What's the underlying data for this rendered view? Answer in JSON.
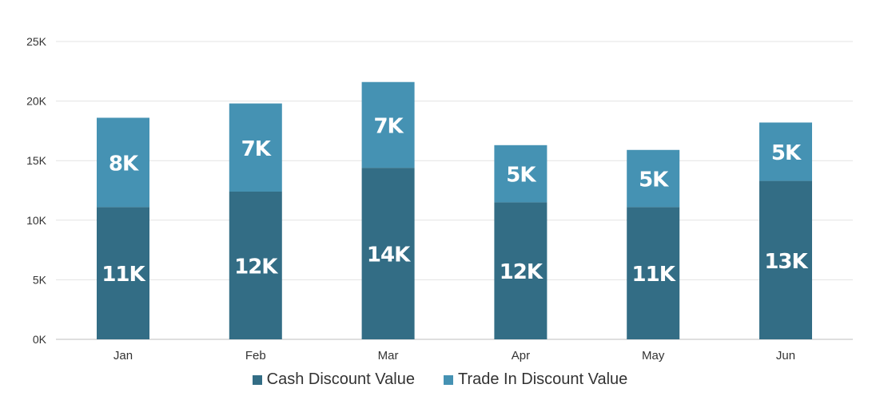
{
  "chart_data": {
    "type": "bar",
    "stacked": true,
    "categories": [
      "Jan",
      "Feb",
      "Mar",
      "Apr",
      "May",
      "Jun"
    ],
    "series": [
      {
        "name": "Cash Discount Value",
        "color": "#336d85",
        "values": [
          11100,
          12400,
          14400,
          11500,
          11100,
          13300
        ],
        "labels": [
          "11K",
          "12K",
          "14K",
          "12K",
          "11K",
          "13K"
        ]
      },
      {
        "name": "Trade In Discount Value",
        "color": "#4592b3",
        "values": [
          7500,
          7400,
          7200,
          4800,
          4800,
          4900
        ],
        "labels": [
          "8K",
          "7K",
          "7K",
          "5K",
          "5K",
          "5K"
        ]
      }
    ],
    "yticks": [
      "0K",
      "5K",
      "10K",
      "15K",
      "20K",
      "25K"
    ],
    "ylim": [
      0,
      25000
    ],
    "grid": true,
    "legend_position": "bottom"
  }
}
